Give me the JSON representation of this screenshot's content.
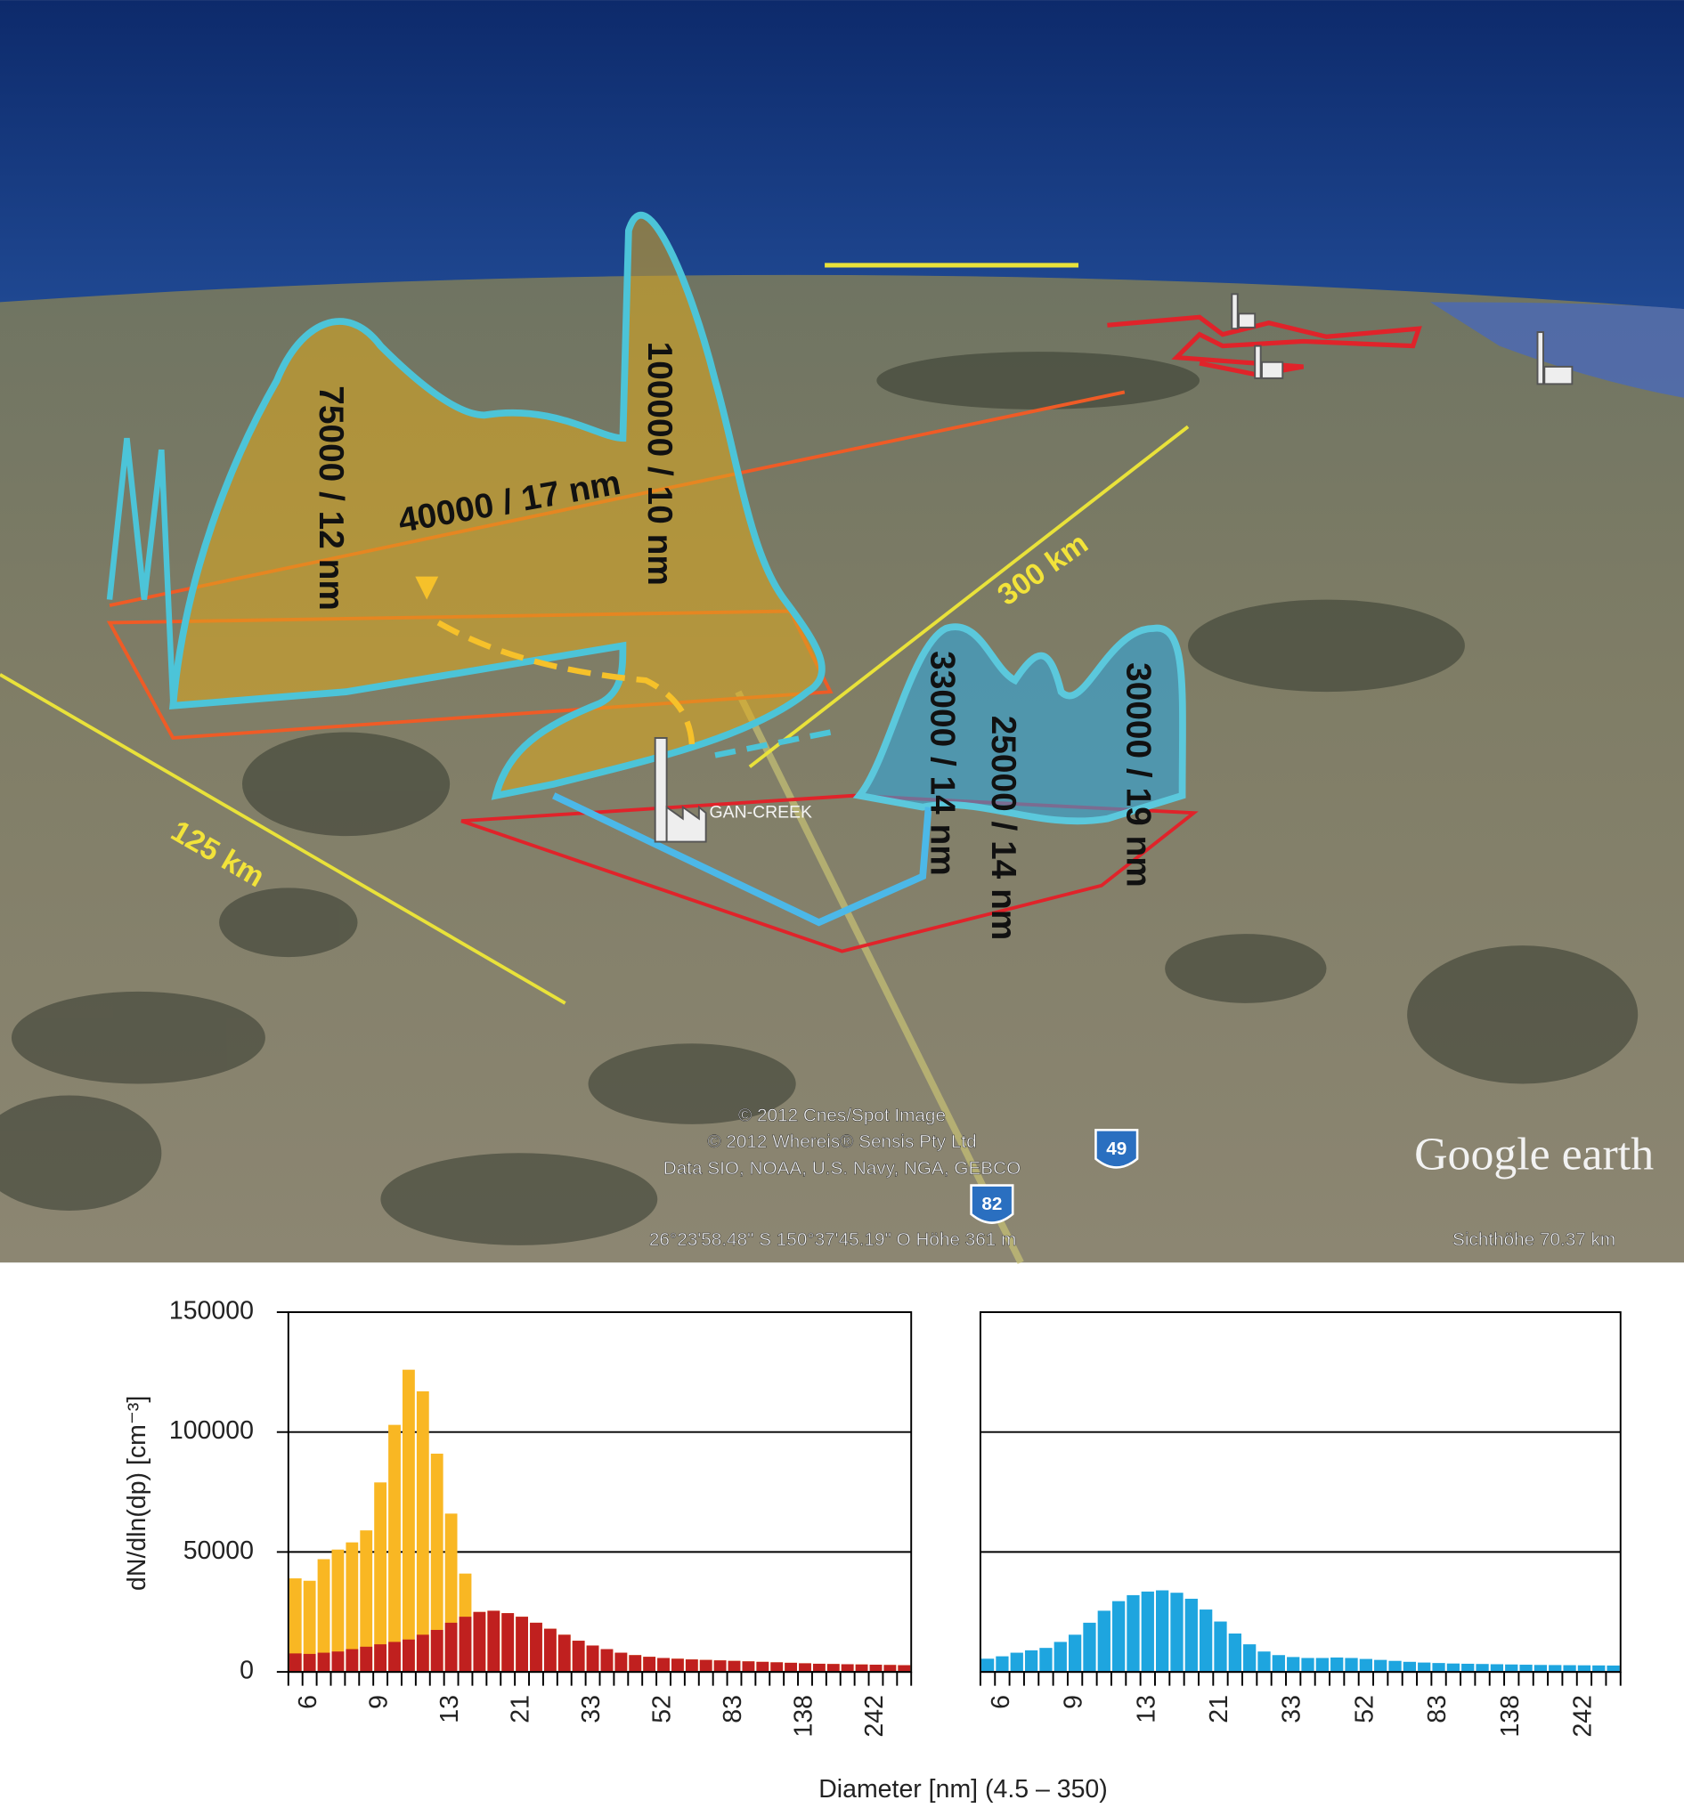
{
  "map": {
    "annotations": [
      "75000 / 12 nm",
      "100000 / 10 nm",
      "40000 / 17 nm",
      "300 km",
      "125 km",
      "33000 / 14 nm",
      "25000 / 14 nm",
      "30000 / 19 nm"
    ],
    "place_label": "GAN-CREEK",
    "road_shields": [
      "49",
      "82"
    ],
    "attribution": [
      "© 2012 Cnes/Spot Image",
      "© 2012 Whereis® Sensis Pty Ltd",
      "Data SIO, NOAA, U.S. Navy, NGA, GEBCO"
    ],
    "coordinates": "26°23'58.48\" S 150°37'45.19\" O Höhe 361 m",
    "eye_altitude": "Sichthöhe 70.37 km",
    "logo": "Google earth"
  },
  "chart_data": [
    {
      "type": "bar",
      "y_label": "dN/dln(dp) [cm⁻³]",
      "x_label": "Diameter [nm] (4.5 – 350)",
      "categories": [
        null,
        "6",
        null,
        null,
        null,
        null,
        "9",
        null,
        null,
        null,
        null,
        "13",
        null,
        null,
        null,
        null,
        "21",
        null,
        null,
        null,
        null,
        "33",
        null,
        null,
        null,
        null,
        "52",
        null,
        null,
        null,
        null,
        "83",
        null,
        null,
        null,
        null,
        "138",
        null,
        null,
        null,
        null,
        "242",
        null,
        null
      ],
      "series": [
        {
          "color": "#f9b723",
          "values": [
            39000,
            38000,
            47000,
            51000,
            54000,
            59000,
            79000,
            103000,
            126000,
            117000,
            91000,
            66000,
            41000,
            25000,
            25500,
            24500,
            23000,
            20500,
            18000,
            15500,
            13000,
            11000,
            9500,
            8000,
            7000,
            6300,
            5800,
            5500,
            5200,
            5000,
            4800,
            4600,
            4400,
            4200,
            4000,
            3800,
            3600,
            3400,
            3300,
            3200,
            3100,
            3000,
            2900,
            2800
          ]
        },
        {
          "color": "#c0201f",
          "values": [
            7700,
            7500,
            8000,
            8500,
            9500,
            10500,
            11500,
            12500,
            13500,
            15500,
            17500,
            20500,
            23000,
            25000,
            25500,
            24500,
            23000,
            20500,
            18000,
            15500,
            13000,
            11000,
            9500,
            8000,
            7000,
            6300,
            5800,
            5500,
            5200,
            5000,
            4800,
            4600,
            4400,
            4200,
            4000,
            3800,
            3600,
            3400,
            3300,
            3200,
            3100,
            3000,
            2900,
            2800
          ]
        }
      ],
      "ylim": [
        0,
        150000
      ],
      "yticks": [
        0,
        50000,
        100000,
        150000
      ],
      "ytick_labels": true,
      "grid": true
    },
    {
      "type": "bar",
      "categories": [
        null,
        "6",
        null,
        null,
        null,
        null,
        "9",
        null,
        null,
        null,
        null,
        "13",
        null,
        null,
        null,
        null,
        "21",
        null,
        null,
        null,
        null,
        "33",
        null,
        null,
        null,
        null,
        "52",
        null,
        null,
        null,
        null,
        "83",
        null,
        null,
        null,
        null,
        "138",
        null,
        null,
        null,
        null,
        "242",
        null,
        null
      ],
      "series": [
        {
          "color": "#1ea5df",
          "values": [
            5500,
            6500,
            8000,
            9000,
            10000,
            12500,
            15500,
            20500,
            25500,
            29500,
            32000,
            33500,
            34000,
            33000,
            30500,
            26000,
            21000,
            16000,
            11500,
            8500,
            7000,
            6200,
            5800,
            5800,
            6000,
            5800,
            5400,
            5000,
            4600,
            4200,
            3900,
            3700,
            3500,
            3400,
            3300,
            3200,
            3100,
            3000,
            2900,
            2850,
            2800,
            2750,
            2700,
            2650
          ]
        }
      ],
      "ylim": [
        0,
        150000
      ],
      "yticks": [
        0,
        50000,
        100000,
        150000
      ],
      "ytick_labels": false,
      "grid": true
    }
  ]
}
